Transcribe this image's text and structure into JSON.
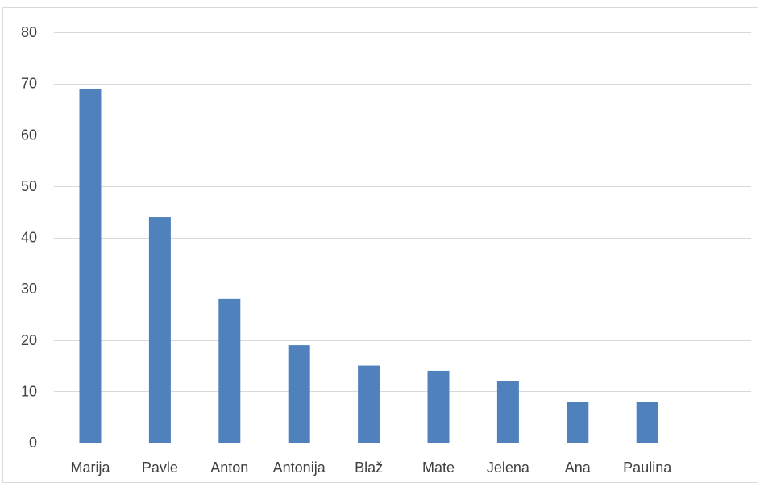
{
  "chart_data": {
    "type": "bar",
    "title": "",
    "xlabel": "",
    "ylabel": "",
    "categories": [
      "Marija",
      "Pavle",
      "Anton",
      "Antonija",
      "Blaž",
      "Mate",
      "Jelena",
      "Ana",
      "Paulina"
    ],
    "values": [
      69,
      44,
      28,
      19,
      15,
      14,
      12,
      8,
      8
    ],
    "ylim": [
      0,
      80
    ],
    "yticks": [
      "0",
      "10",
      "20",
      "30",
      "40",
      "50",
      "60",
      "70",
      "80"
    ],
    "grid": true,
    "legend": "none",
    "colors": {
      "bar": "#4f81bd",
      "grid": "#d9d9d9",
      "axis": "#bfbfbf",
      "text": "#404040"
    }
  }
}
